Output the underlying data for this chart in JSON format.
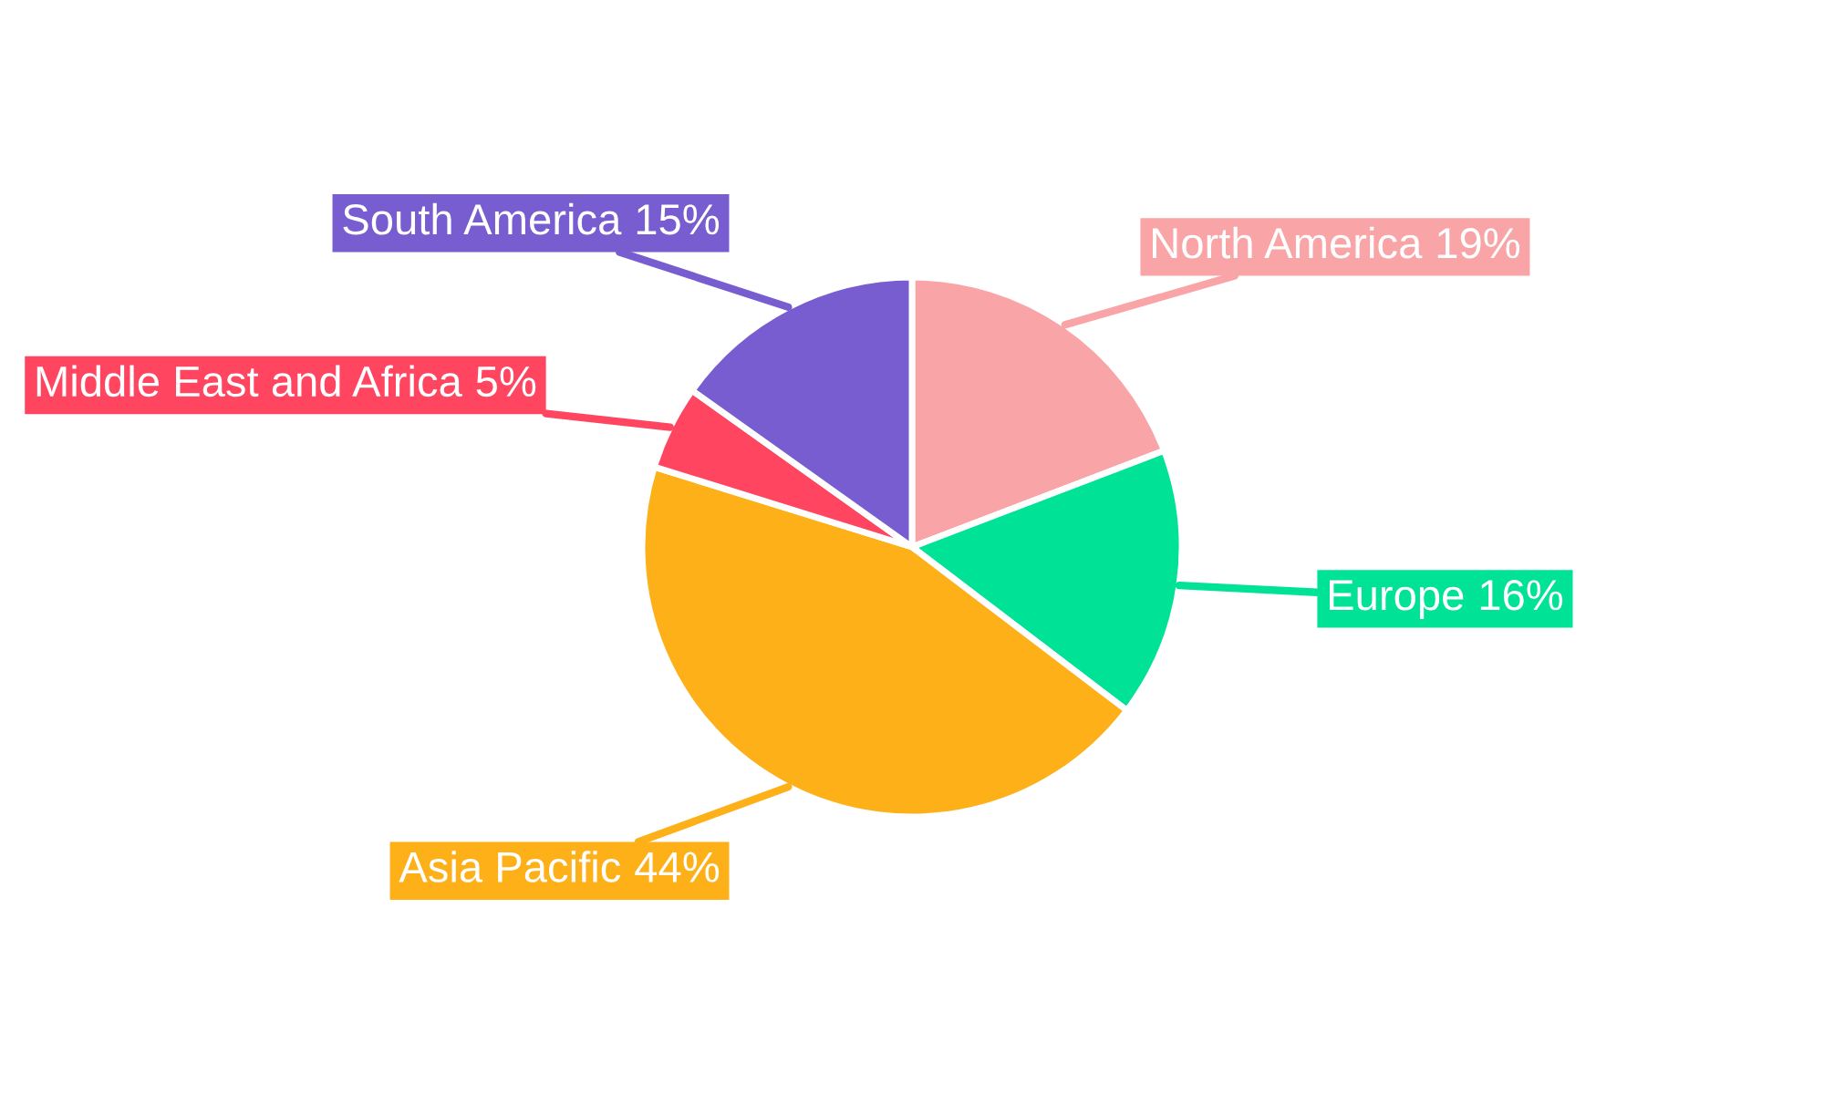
{
  "chart_data": {
    "type": "pie",
    "categories": [
      "North America",
      "Europe",
      "Asia Pacific",
      "Middle East and Africa",
      "South America"
    ],
    "values": [
      19,
      16,
      44,
      5,
      15
    ],
    "colors": [
      "#f9a5a7",
      "#00e396",
      "#feb019",
      "#ff4560",
      "#775dd0"
    ],
    "value_labels": [
      "19%",
      "16%",
      "44%",
      "5%",
      "15%"
    ],
    "legend": false
  }
}
